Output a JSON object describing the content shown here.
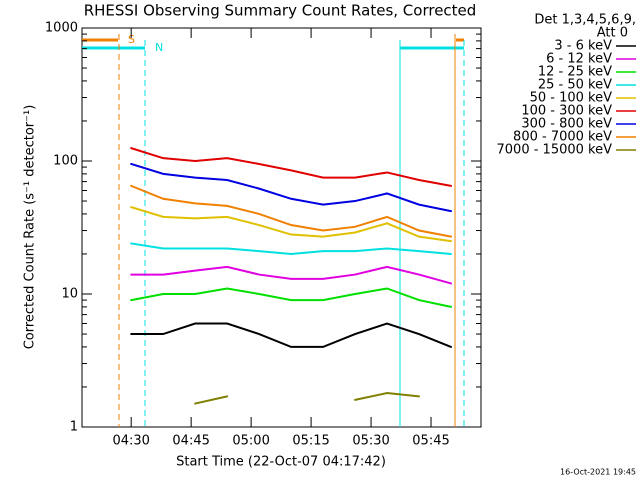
{
  "chart_data": {
    "type": "line",
    "title": "RHESSI Observing Summary Count Rates, Corrected",
    "x_label": "Start Time (22-Oct-07 04:17:42)",
    "y_label": "Corrected Count Rate (s⁻¹ detector⁻¹)",
    "detectors": "Det 1,3,4,5,6,9,",
    "attenuator": "Att 0",
    "annotations": [
      "S",
      "N"
    ],
    "timestamp": "16-Oct-2021 19:45",
    "log_y": true,
    "x": [
      270,
      278,
      286,
      294,
      302,
      310,
      318,
      326,
      334,
      342,
      350
    ],
    "xlim": [
      257.7,
      357.5
    ],
    "xticks": [
      {
        "value": 270,
        "label": "04:30"
      },
      {
        "value": 285,
        "label": "04:45"
      },
      {
        "value": 300,
        "label": "05:00"
      },
      {
        "value": 315,
        "label": "05:15"
      },
      {
        "value": 330,
        "label": "05:30"
      },
      {
        "value": 345,
        "label": "05:45"
      }
    ],
    "ylim": [
      1,
      1000
    ],
    "yticks": [
      1,
      10,
      100,
      1000
    ],
    "series": [
      {
        "name": "3 - 6 keV",
        "color": "#000000",
        "values": [
          5,
          5,
          6,
          6,
          5,
          4,
          4,
          5,
          6,
          5,
          4
        ]
      },
      {
        "name": "6 - 12 keV",
        "color": "#e000e0",
        "values": [
          14,
          14,
          15,
          16,
          14,
          13,
          13,
          14,
          16,
          14,
          12
        ]
      },
      {
        "name": "12 - 25 keV",
        "color": "#00e000",
        "values": [
          9,
          10,
          10,
          11,
          10,
          9,
          9,
          10,
          11,
          9,
          8
        ]
      },
      {
        "name": "25 - 50 keV",
        "color": "#00e0e0",
        "values": [
          24,
          22,
          22,
          22,
          21,
          20,
          21,
          21,
          22,
          21,
          20
        ]
      },
      {
        "name": "50 - 100 keV",
        "color": "#e0c000",
        "values": [
          45,
          38,
          37,
          38,
          33,
          28,
          27,
          29,
          34,
          27,
          25
        ]
      },
      {
        "name": "100 - 300 keV",
        "color": "#e00000",
        "values": [
          125,
          105,
          100,
          105,
          95,
          85,
          75,
          75,
          82,
          72,
          65
        ]
      },
      {
        "name": "300 - 800 keV",
        "color": "#0000e0",
        "values": [
          95,
          80,
          75,
          72,
          62,
          52,
          47,
          50,
          57,
          47,
          42
        ]
      },
      {
        "name": "800 - 7000 keV",
        "color": "#f08000",
        "values": [
          65,
          52,
          48,
          46,
          40,
          33,
          30,
          32,
          38,
          30,
          27
        ]
      },
      {
        "name": "7000 - 15000 keV",
        "color": "#808000",
        "values": [
          null,
          null,
          1.5,
          1.7,
          null,
          null,
          null,
          1.6,
          1.8,
          1.7,
          null
        ]
      }
    ]
  }
}
